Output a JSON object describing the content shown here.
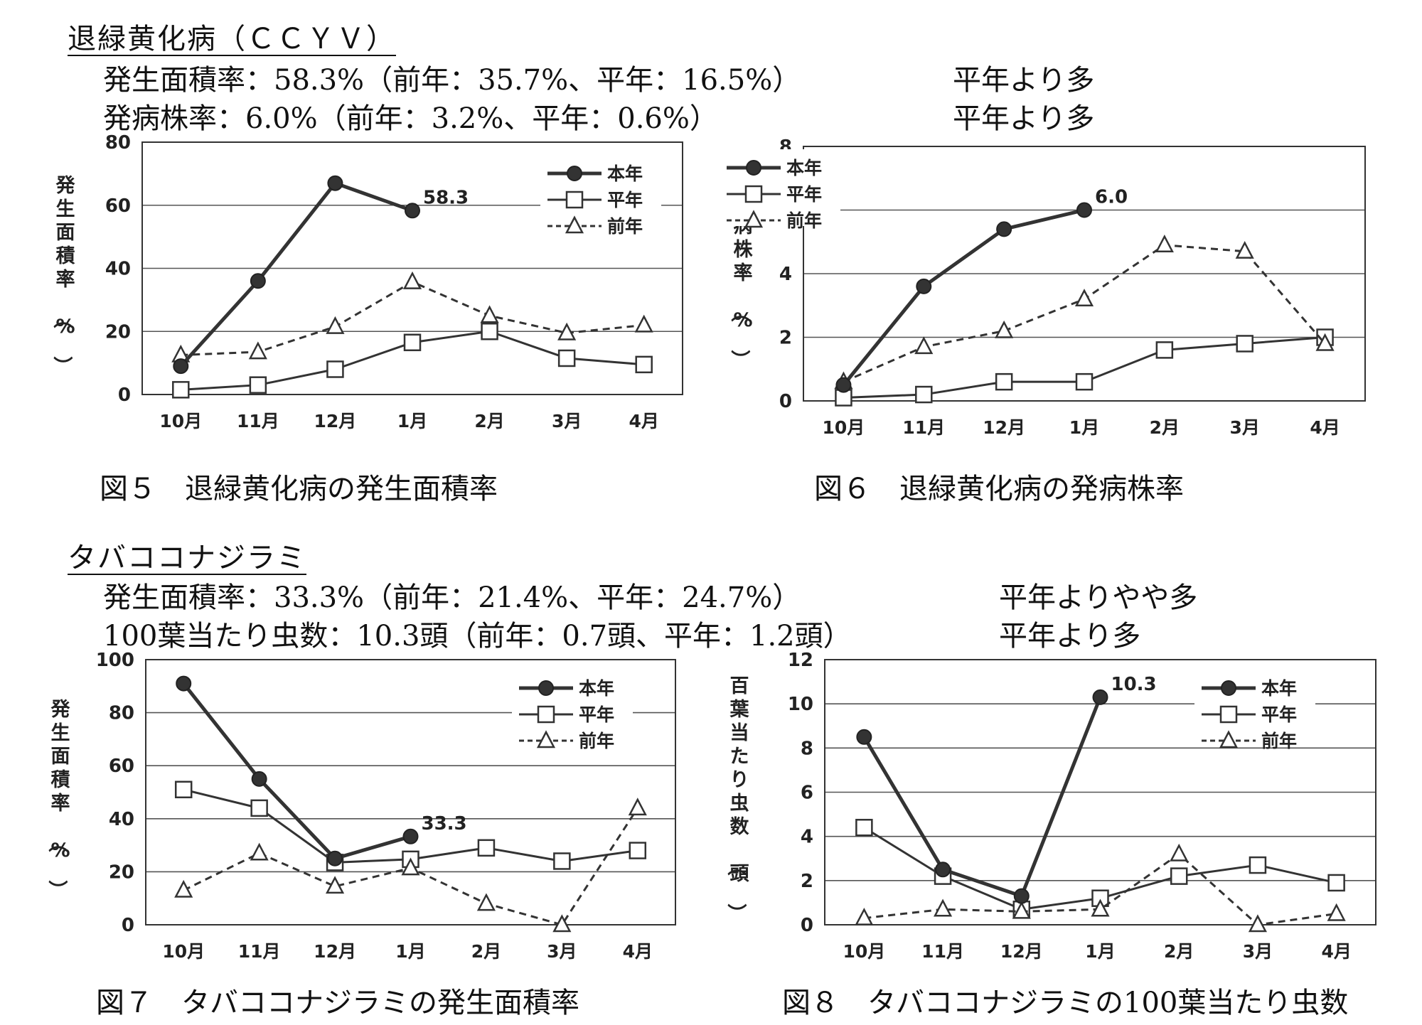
{
  "sections": [
    {
      "heading": "退緑黄化病（ＣＣＹＶ）",
      "lines": [
        {
          "text": "発生面積率：58.3%（前年：35.7%、平年：16.5%）",
          "assess": "平年より多"
        },
        {
          "text": "発病株率：6.0%（前年：3.2%、平年：0.6%）",
          "assess": "平年より多"
        }
      ]
    },
    {
      "heading": "タバココナジラミ",
      "lines": [
        {
          "text": "発生面積率：33.3%（前年：21.4%、平年：24.7%）",
          "assess": "平年よりやや多"
        },
        {
          "text": "100葉当たり虫数：10.3頭（前年：0.7頭、平年：1.2頭）",
          "assess": "平年より多"
        }
      ]
    }
  ],
  "chart_data": [
    {
      "type": "line",
      "caption": "図５　退緑黄化病の発生面積率",
      "ylabel": "発生面積率（%）",
      "ylim": [
        0,
        80
      ],
      "yticks": [
        0,
        20,
        40,
        60,
        80
      ],
      "categories": [
        "10月",
        "11月",
        "12月",
        "1月",
        "2月",
        "3月",
        "4月"
      ],
      "series": [
        {
          "name": "本年",
          "values": [
            9,
            36,
            67,
            58.3,
            null,
            null,
            null
          ],
          "marker": "filled-circle",
          "style": "thick-solid"
        },
        {
          "name": "平年",
          "values": [
            1.5,
            3,
            8,
            16.5,
            20,
            11.5,
            9.5
          ],
          "marker": "open-square",
          "style": "solid"
        },
        {
          "name": "前年",
          "values": [
            12.5,
            13.5,
            21.5,
            35.7,
            25,
            19.5,
            22
          ],
          "marker": "open-triangle",
          "style": "dashed"
        }
      ],
      "annotation": {
        "text": "58.3",
        "series": 0,
        "index": 3
      },
      "legend": "top-right",
      "grid": true
    },
    {
      "type": "line",
      "caption": "図６　退緑黄化病の発病株率",
      "ylabel": "発病株率（%）",
      "ylim": [
        0,
        8
      ],
      "yticks": [
        0,
        2,
        4,
        6,
        8
      ],
      "categories": [
        "10月",
        "11月",
        "12月",
        "1月",
        "2月",
        "3月",
        "4月"
      ],
      "series": [
        {
          "name": "本年",
          "values": [
            0.5,
            3.6,
            5.4,
            6.0,
            null,
            null,
            null
          ],
          "marker": "filled-circle",
          "style": "thick-solid"
        },
        {
          "name": "平年",
          "values": [
            0.1,
            0.2,
            0.6,
            0.6,
            1.6,
            1.8,
            2.0
          ],
          "marker": "open-square",
          "style": "solid"
        },
        {
          "name": "前年",
          "values": [
            0.6,
            1.7,
            2.2,
            3.2,
            4.9,
            4.7,
            1.8
          ],
          "marker": "open-triangle",
          "style": "dashed"
        }
      ],
      "annotation": {
        "text": "6.0",
        "series": 0,
        "index": 3
      },
      "legend": "top-left",
      "grid": true
    },
    {
      "type": "line",
      "caption": "図７　タバココナジラミの発生面積率",
      "ylabel": "発生面積率（%）",
      "ylim": [
        0,
        100
      ],
      "yticks": [
        0,
        20,
        40,
        60,
        80,
        100
      ],
      "categories": [
        "10月",
        "11月",
        "12月",
        "1月",
        "2月",
        "3月",
        "4月"
      ],
      "series": [
        {
          "name": "本年",
          "values": [
            91,
            55,
            25,
            33.3,
            null,
            null,
            null
          ],
          "marker": "filled-circle",
          "style": "thick-solid"
        },
        {
          "name": "平年",
          "values": [
            51,
            44,
            23.5,
            24.7,
            29,
            24,
            28
          ],
          "marker": "open-square",
          "style": "solid"
        },
        {
          "name": "前年",
          "values": [
            13,
            27,
            14.5,
            21.4,
            8,
            0,
            44
          ],
          "marker": "open-triangle",
          "style": "dashed"
        }
      ],
      "annotation": {
        "text": "33.3",
        "series": 0,
        "index": 3
      },
      "legend": "top-right",
      "grid": true
    },
    {
      "type": "line",
      "caption": "図８　タバココナジラミの100葉当たり虫数",
      "ylabel": "百葉当たり虫数（頭）",
      "ylim": [
        0,
        12
      ],
      "yticks": [
        0,
        2,
        4,
        6,
        8,
        10,
        12
      ],
      "categories": [
        "10月",
        "11月",
        "12月",
        "1月",
        "2月",
        "3月",
        "4月"
      ],
      "series": [
        {
          "name": "本年",
          "values": [
            8.5,
            2.5,
            1.3,
            10.3,
            null,
            null,
            null
          ],
          "marker": "filled-circle",
          "style": "thick-solid"
        },
        {
          "name": "平年",
          "values": [
            4.4,
            2.2,
            0.7,
            1.2,
            2.2,
            2.7,
            1.9
          ],
          "marker": "open-square",
          "style": "solid"
        },
        {
          "name": "前年",
          "values": [
            0.3,
            0.7,
            0.6,
            0.7,
            3.2,
            0,
            0.5
          ],
          "marker": "open-triangle",
          "style": "dashed"
        }
      ],
      "annotation": {
        "text": "10.3",
        "series": 0,
        "index": 3
      },
      "legend": "top-right",
      "grid": true
    }
  ]
}
